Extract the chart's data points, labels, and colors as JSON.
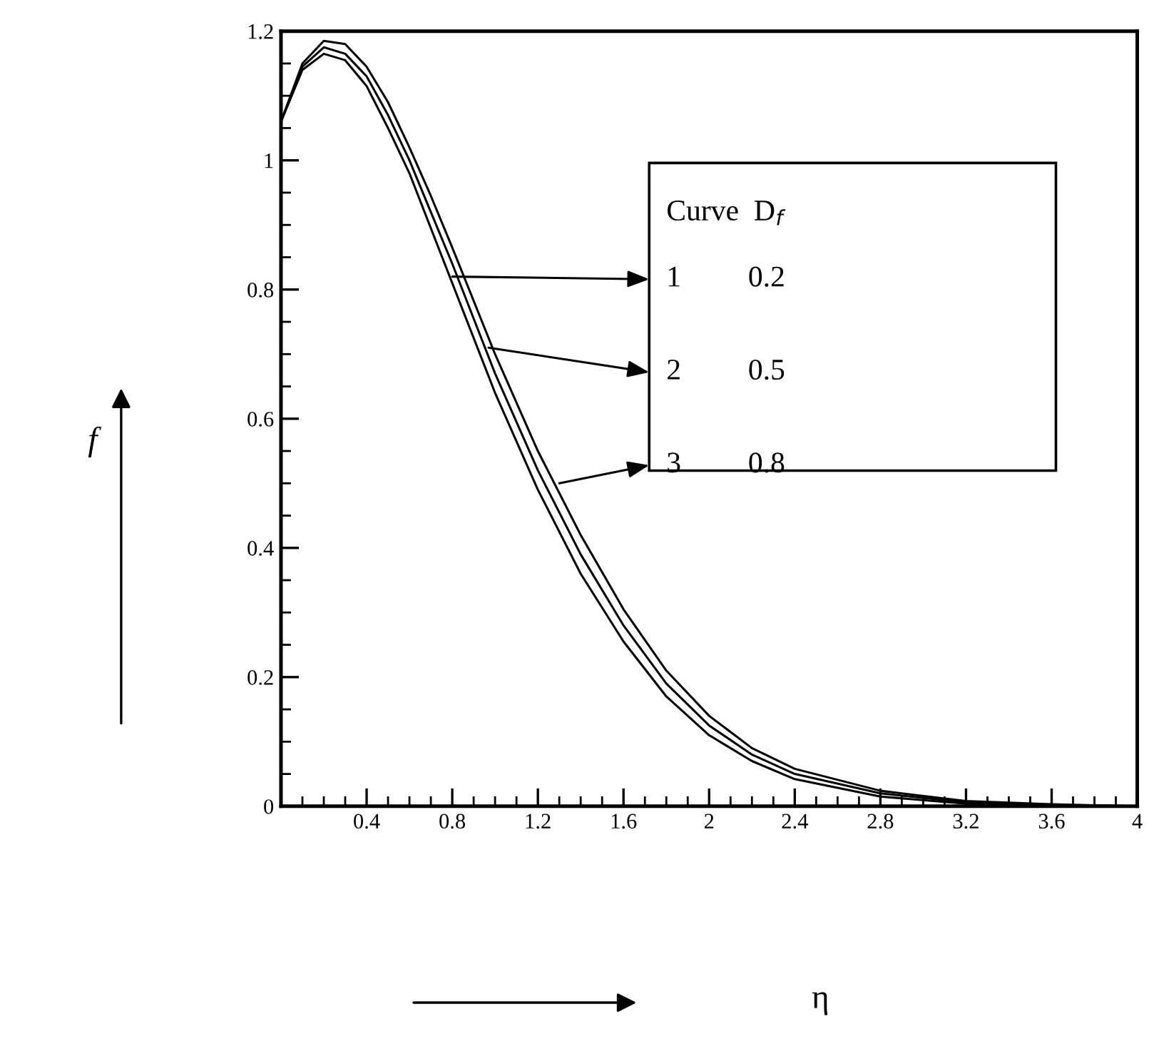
{
  "chart_data": {
    "type": "line",
    "xlabel": "η",
    "ylabel": "f",
    "x": [
      0,
      0.1,
      0.2,
      0.3,
      0.4,
      0.5,
      0.6,
      0.7,
      0.8,
      1.0,
      1.2,
      1.4,
      1.6,
      1.8,
      2.0,
      2.2,
      2.4,
      2.8,
      3.2,
      3.6,
      4.0
    ],
    "series": [
      {
        "color": "#000000",
        "values": [
          1.06,
          1.14,
          1.165,
          1.155,
          1.115,
          1.05,
          0.98,
          0.895,
          0.81,
          0.64,
          0.49,
          0.36,
          0.255,
          0.17,
          0.11,
          0.07,
          0.042,
          0.015,
          0.004,
          0.001,
          0.0
        ]
      },
      {
        "color": "#000000",
        "values": [
          1.06,
          1.145,
          1.175,
          1.165,
          1.13,
          1.07,
          1.0,
          0.92,
          0.84,
          0.67,
          0.52,
          0.39,
          0.28,
          0.19,
          0.125,
          0.08,
          0.05,
          0.02,
          0.006,
          0.002,
          0.0
        ]
      },
      {
        "color": "#000000",
        "values": [
          1.06,
          1.15,
          1.185,
          1.18,
          1.145,
          1.09,
          1.02,
          0.945,
          0.865,
          0.7,
          0.55,
          0.42,
          0.305,
          0.21,
          0.14,
          0.09,
          0.058,
          0.024,
          0.008,
          0.003,
          0.0
        ]
      }
    ],
    "annotations": [
      "Curve  D$_{f}$",
      {
        "text": "1         0.2",
        "x": 0.8,
        "y": 0.82
      },
      {
        "text": "2         0.5",
        "x": 0.97,
        "y": 0.71
      },
      {
        "text": "3         0.8",
        "x": 1.3,
        "y": 0.5
      }
    ],
    "xlim": [
      0,
      4
    ],
    "ylim": [
      0,
      1.2
    ],
    "xticks": [
      {
        "value": 0,
        "label": null
      },
      0.4,
      0.8,
      1.2,
      1.6,
      2,
      2.4,
      2.8,
      3.2,
      3.6,
      4
    ],
    "yticks": [
      0,
      0.2,
      0.4,
      0.6,
      0.8,
      1,
      1.2
    ],
    "grid": false,
    "legend": false,
    "marker": "none",
    "line_style": "solid"
  }
}
